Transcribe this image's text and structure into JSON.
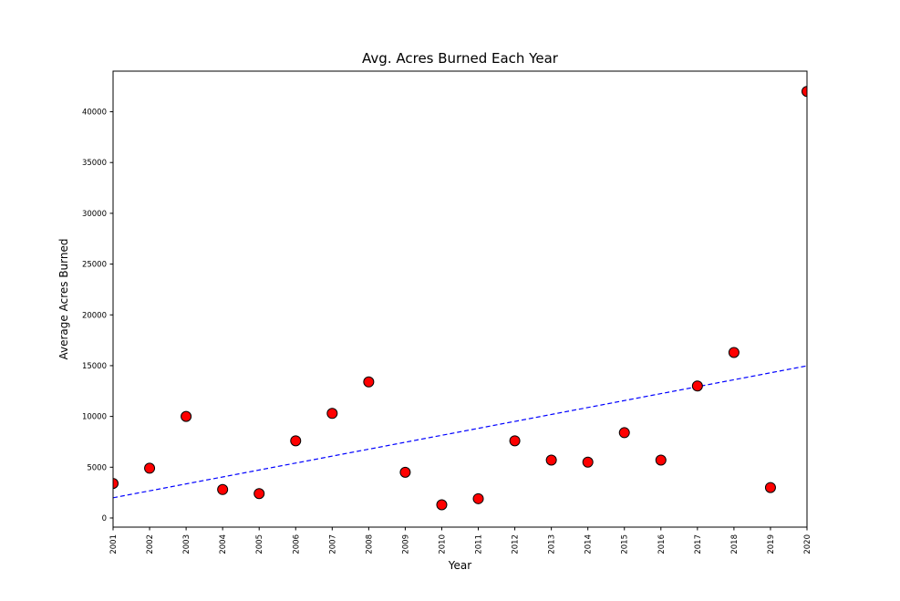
{
  "figure": {
    "background_color": "#ffffff"
  },
  "chart_data": {
    "type": "scatter",
    "title": "Avg. Acres Burned Each Year",
    "xlabel": "Year",
    "ylabel": "Average Acres Burned",
    "x": [
      2001,
      2002,
      2003,
      2004,
      2005,
      2006,
      2007,
      2008,
      2009,
      2010,
      2011,
      2012,
      2013,
      2014,
      2015,
      2016,
      2017,
      2018,
      2019,
      2020
    ],
    "values": [
      3400,
      4900,
      10000,
      2800,
      2400,
      7600,
      10300,
      13400,
      4500,
      1300,
      1900,
      7600,
      5700,
      5500,
      8400,
      5700,
      13000,
      16300,
      3000,
      42000
    ],
    "trend_line": {
      "style": "dashed",
      "color": "#0000ff",
      "x": [
        2001,
        2020
      ],
      "y": [
        1990,
        14980
      ]
    },
    "marker": {
      "color": "#ff0000",
      "edge_color": "#000000",
      "radius": 5.5
    },
    "xlim": [
      2001,
      2020
    ],
    "ylim": [
      -900,
      44000
    ],
    "xticks": [
      2001,
      2002,
      2003,
      2004,
      2005,
      2006,
      2007,
      2008,
      2009,
      2010,
      2011,
      2012,
      2013,
      2014,
      2015,
      2016,
      2017,
      2018,
      2019,
      2020
    ],
    "yticks": [
      0,
      5000,
      10000,
      15000,
      20000,
      25000,
      30000,
      35000,
      40000
    ],
    "grid": false,
    "legend_position": "none",
    "axis_color": "#000000",
    "tick_label_color": "#000000"
  }
}
